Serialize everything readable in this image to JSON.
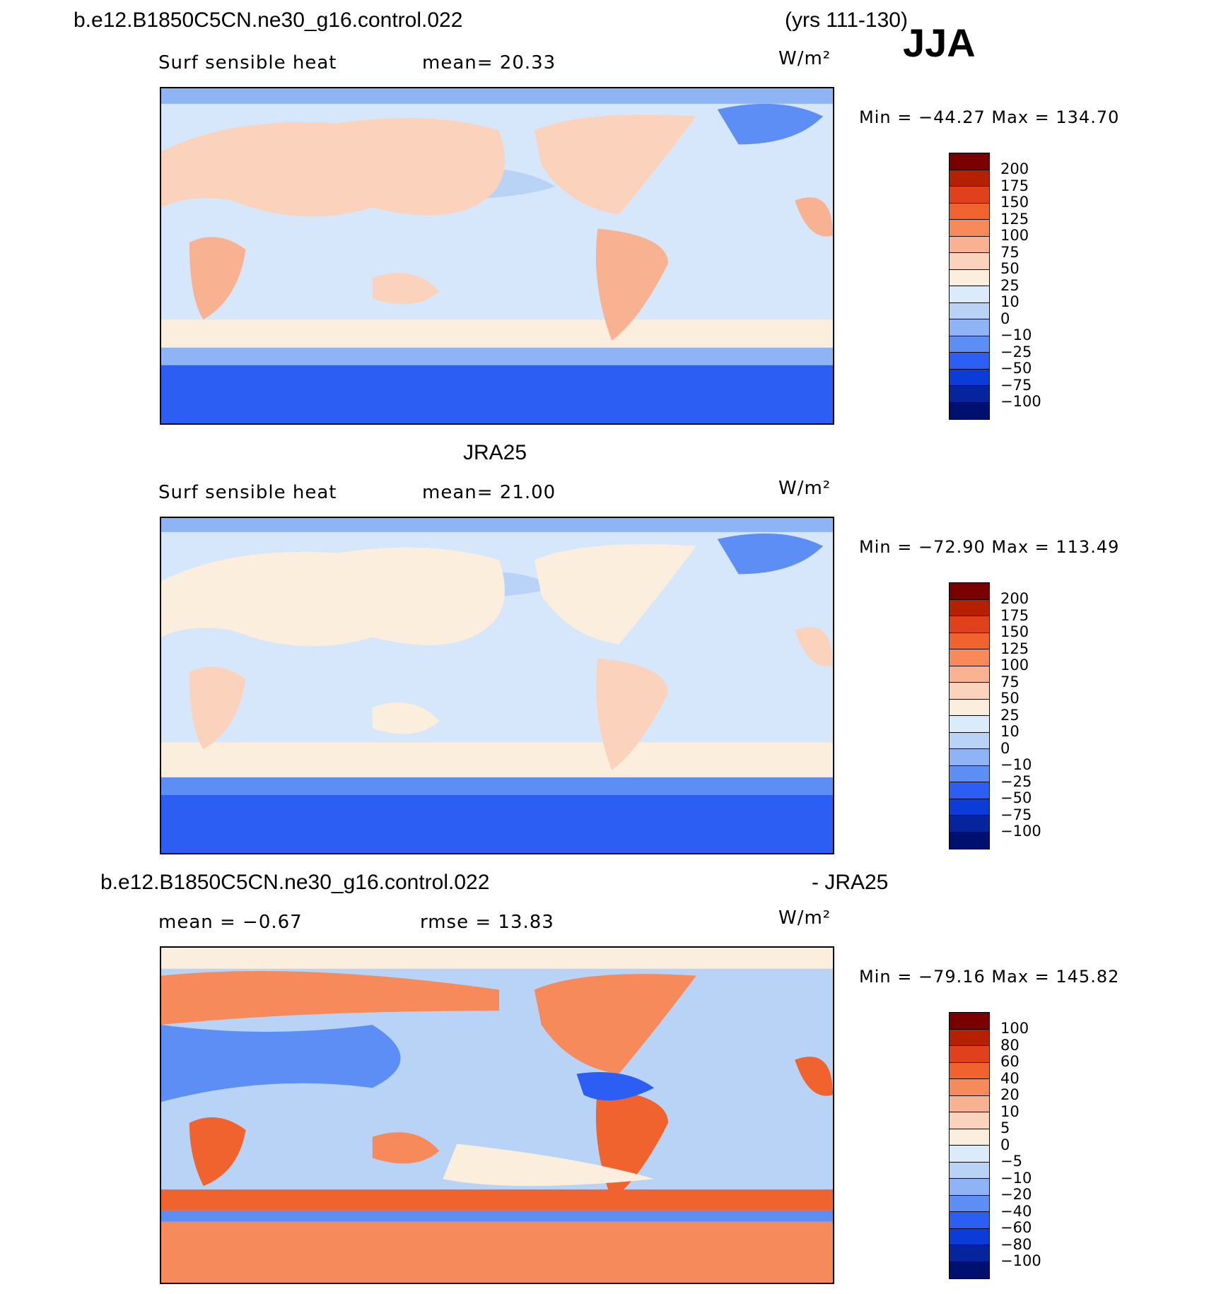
{
  "header": {
    "case_name": "b.e12.B1850C5CN.ne30_g16.control.022",
    "years": "(yrs 111-130)",
    "season": "JJA"
  },
  "panels": [
    {
      "id": "model",
      "title": "",
      "variable": "Surf sensible heat",
      "stat_text": "mean=   20.33",
      "units": "W/m²",
      "minmax": "Min  =  −44.27  Max  =  134.70",
      "ticks": [
        "200",
        "175",
        "150",
        "125",
        "100",
        "75",
        "50",
        "25",
        "10",
        "0",
        "−10",
        "−25",
        "−50",
        "−75",
        "−100"
      ]
    },
    {
      "id": "obs",
      "title": "JRA25",
      "variable": "Surf sensible heat",
      "stat_text": "mean=   21.00",
      "units": "W/m²",
      "minmax": "Min  =  −72.90  Max  =  113.49",
      "ticks": [
        "200",
        "175",
        "150",
        "125",
        "100",
        "75",
        "50",
        "25",
        "10",
        "0",
        "−10",
        "−25",
        "−50",
        "−75",
        "−100"
      ]
    },
    {
      "id": "diff",
      "title_left": "b.e12.B1850C5CN.ne30_g16.control.022",
      "title_right": "- JRA25",
      "variable": "mean =    −0.67",
      "stat_text": "rmse =    13.83",
      "units": "W/m²",
      "minmax": "Min  =  −79.16  Max  =  145.82",
      "ticks": [
        "100",
        "80",
        "60",
        "40",
        "20",
        "10",
        "5",
        "0",
        "−5",
        "−10",
        "−20",
        "−40",
        "−60",
        "−80",
        "−100"
      ]
    }
  ],
  "colors": {
    "colorbar": [
      "#7a0000",
      "#b52100",
      "#e0401c",
      "#f0622e",
      "#f78a5a",
      "#f9b291",
      "#fbd3bc",
      "#fbeedd",
      "#dcebfb",
      "#b9d3f6",
      "#8fb4f5",
      "#5c8ef6",
      "#2c5ef4",
      "#0b3bd9",
      "#05249e",
      "#001070"
    ],
    "ocean_neutral": "#d6e7fb",
    "southern_cold": "#1c4df2",
    "land_warm": "#f7bfa2"
  }
}
